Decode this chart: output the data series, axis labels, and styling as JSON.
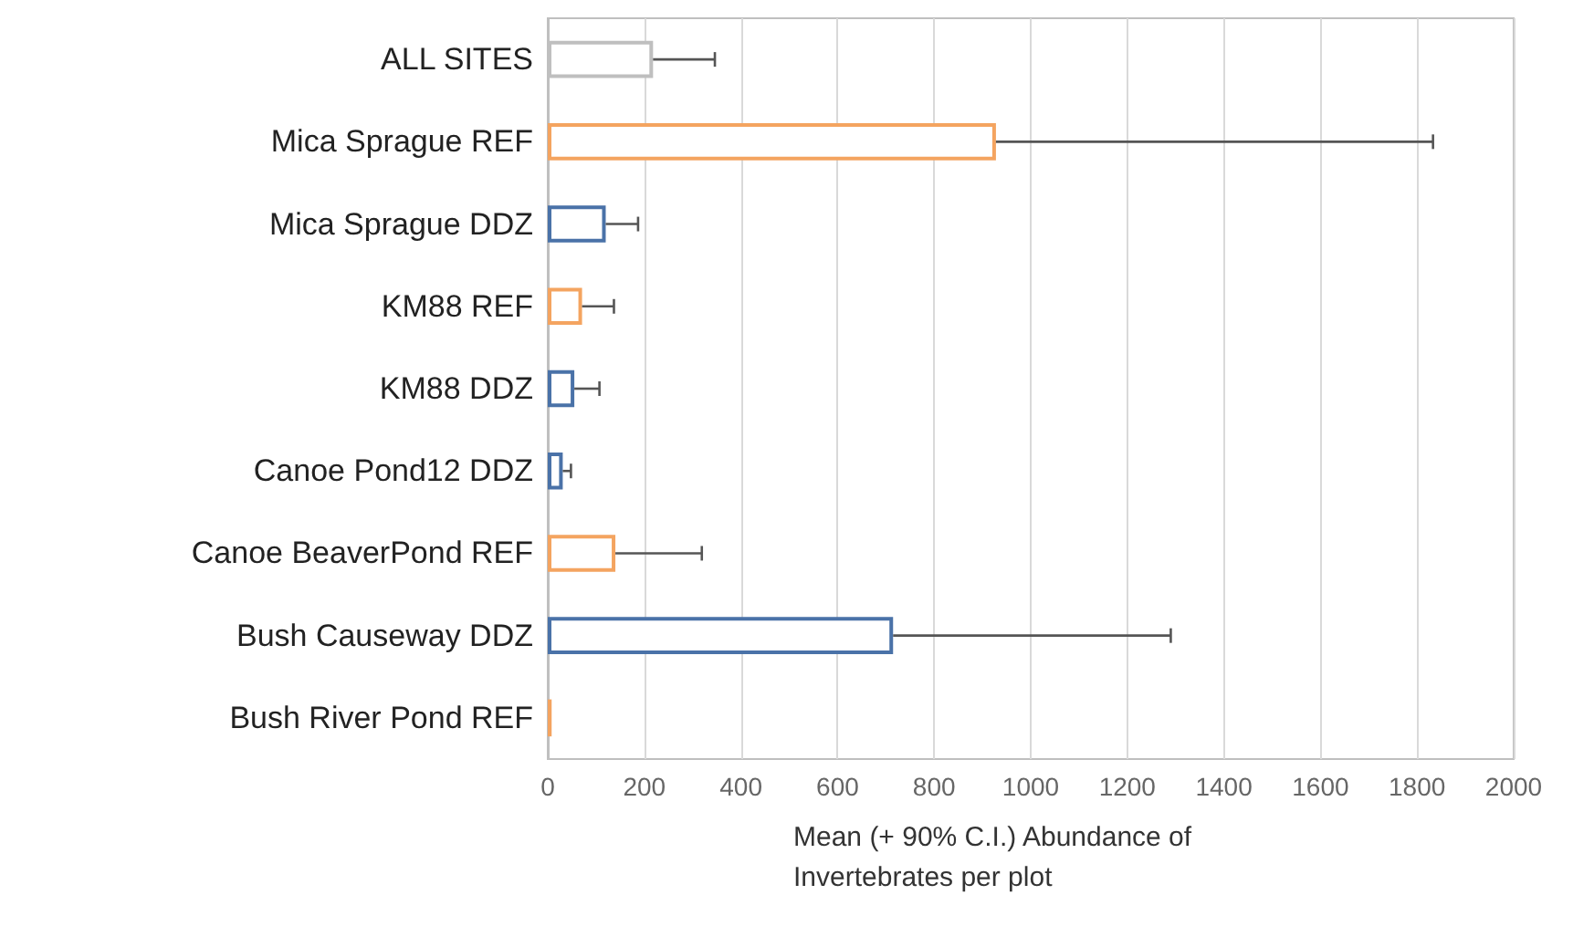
{
  "chart_data": {
    "type": "bar",
    "orientation": "horizontal",
    "categories": [
      "ALL SITES",
      "Mica Sprague REF",
      "Mica Sprague DDZ",
      "KM88 REF",
      "KM88 DDZ",
      "Canoe Pond12 DDZ",
      "Canoe BeaverPond REF",
      "Bush Causeway DDZ",
      "Bush River Pond REF"
    ],
    "values": [
      218,
      928,
      120,
      71,
      55,
      31,
      140,
      715,
      8
    ],
    "errors": [
      [
        218,
        346
      ],
      [
        928,
        1833
      ],
      [
        120,
        187
      ],
      [
        71,
        137
      ],
      [
        55,
        107
      ],
      [
        31,
        48
      ],
      [
        140,
        319
      ],
      [
        715,
        1290
      ],
      null
    ],
    "colors": [
      "#bfbfbf",
      "#f4a460",
      "#4a72a8",
      "#f4a460",
      "#4a72a8",
      "#4a72a8",
      "#f4a460",
      "#4a72a8",
      "#f4a460"
    ],
    "xlabel": "Mean (+ 90% C.I.) Abundance of Invertebrates per plot",
    "xlim": [
      0,
      2000
    ],
    "xticks": [
      0,
      200,
      400,
      600,
      800,
      1000,
      1200,
      1400,
      1600,
      1800,
      2000
    ],
    "grid": "x"
  }
}
